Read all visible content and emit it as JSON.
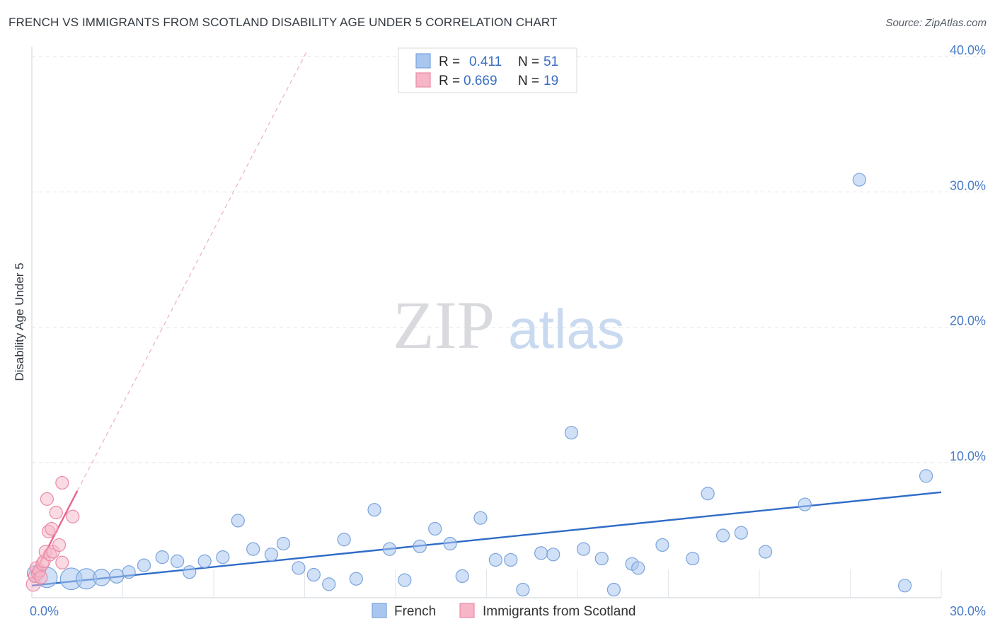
{
  "title": "FRENCH VS IMMIGRANTS FROM SCOTLAND DISABILITY AGE UNDER 5 CORRELATION CHART",
  "source": "Source: ZipAtlas.com",
  "watermark": {
    "zip": "ZIP",
    "atlas": "atlas"
  },
  "colors": {
    "french_fill": "#a9c6ef",
    "french_stroke": "#7aa3dc",
    "french_line": "#2f6cc7",
    "scot_fill": "#f6b6c8",
    "scot_stroke": "#ea8aa6",
    "scot_line": "#e8648e",
    "axis_text": "#4a7cc9",
    "grid": "#e3e6ea"
  },
  "legend": {
    "rows": [
      {
        "r_label": "R =",
        "r_value": "0.411",
        "n_label": "N =",
        "n_value": "51"
      },
      {
        "r_label": "R =",
        "r_value": "0.669",
        "n_label": "N =",
        "n_value": "19"
      }
    ]
  },
  "bottom_legend": [
    "French",
    "Immigrants from Scotland"
  ],
  "chart_data": {
    "type": "scatter",
    "title": "FRENCH VS IMMIGRANTS FROM SCOTLAND DISABILITY AGE UNDER 5 CORRELATION CHART",
    "xlabel": "",
    "ylabel": "Disability Age Under 5",
    "xlim": [
      0,
      30
    ],
    "ylim": [
      0,
      40
    ],
    "x_tick_labels": [
      "0.0%",
      "30.0%"
    ],
    "y_tick_labels": [
      "10.0%",
      "20.0%",
      "30.0%",
      "40.0%"
    ],
    "y_ticks": [
      10,
      20,
      30,
      40
    ],
    "grid": true,
    "legend_position": "top-center",
    "series": [
      {
        "name": "French",
        "R": 0.411,
        "N": 51,
        "trend": {
          "x": [
            0,
            30
          ],
          "y": [
            0.9,
            7.8
          ]
        },
        "points": [
          {
            "x": 0.1,
            "y": 1.8,
            "s": 1.2
          },
          {
            "x": 0.5,
            "y": 1.5,
            "s": 1.6
          },
          {
            "x": 1.3,
            "y": 1.4,
            "s": 1.7
          },
          {
            "x": 1.8,
            "y": 1.4,
            "s": 1.6
          },
          {
            "x": 2.3,
            "y": 1.5,
            "s": 1.3
          },
          {
            "x": 2.8,
            "y": 1.6,
            "s": 1.1
          },
          {
            "x": 3.2,
            "y": 1.9,
            "s": 1.0
          },
          {
            "x": 3.7,
            "y": 2.4,
            "s": 1.0
          },
          {
            "x": 4.3,
            "y": 3.0,
            "s": 1.0
          },
          {
            "x": 4.8,
            "y": 2.7,
            "s": 1.0
          },
          {
            "x": 5.2,
            "y": 1.9,
            "s": 1.0
          },
          {
            "x": 5.7,
            "y": 2.7,
            "s": 1.0
          },
          {
            "x": 6.3,
            "y": 3.0,
            "s": 1.0
          },
          {
            "x": 6.8,
            "y": 5.7,
            "s": 1.0
          },
          {
            "x": 7.3,
            "y": 3.6,
            "s": 1.0
          },
          {
            "x": 7.9,
            "y": 3.2,
            "s": 1.0
          },
          {
            "x": 8.3,
            "y": 4.0,
            "s": 1.0
          },
          {
            "x": 8.8,
            "y": 2.2,
            "s": 1.0
          },
          {
            "x": 9.3,
            "y": 1.7,
            "s": 1.0
          },
          {
            "x": 9.8,
            "y": 1.0,
            "s": 1.0
          },
          {
            "x": 10.3,
            "y": 4.3,
            "s": 1.0
          },
          {
            "x": 10.7,
            "y": 1.4,
            "s": 1.0
          },
          {
            "x": 11.3,
            "y": 6.5,
            "s": 1.0
          },
          {
            "x": 11.8,
            "y": 3.6,
            "s": 1.0
          },
          {
            "x": 12.3,
            "y": 1.3,
            "s": 1.0
          },
          {
            "x": 12.8,
            "y": 3.8,
            "s": 1.0
          },
          {
            "x": 13.3,
            "y": 5.1,
            "s": 1.0
          },
          {
            "x": 13.8,
            "y": 4.0,
            "s": 1.0
          },
          {
            "x": 14.2,
            "y": 1.6,
            "s": 1.0
          },
          {
            "x": 14.8,
            "y": 5.9,
            "s": 1.0
          },
          {
            "x": 15.3,
            "y": 2.8,
            "s": 1.0
          },
          {
            "x": 15.8,
            "y": 2.8,
            "s": 1.0
          },
          {
            "x": 16.2,
            "y": 0.6,
            "s": 1.0
          },
          {
            "x": 16.8,
            "y": 3.3,
            "s": 1.0
          },
          {
            "x": 17.2,
            "y": 3.2,
            "s": 1.0
          },
          {
            "x": 17.8,
            "y": 12.2,
            "s": 1.0
          },
          {
            "x": 18.2,
            "y": 3.6,
            "s": 1.0
          },
          {
            "x": 18.8,
            "y": 2.9,
            "s": 1.0
          },
          {
            "x": 19.2,
            "y": 0.6,
            "s": 1.0
          },
          {
            "x": 19.8,
            "y": 2.5,
            "s": 1.0
          },
          {
            "x": 20.0,
            "y": 2.2,
            "s": 1.0
          },
          {
            "x": 20.8,
            "y": 3.9,
            "s": 1.0
          },
          {
            "x": 21.8,
            "y": 2.9,
            "s": 1.0
          },
          {
            "x": 22.3,
            "y": 7.7,
            "s": 1.0
          },
          {
            "x": 22.8,
            "y": 4.6,
            "s": 1.0
          },
          {
            "x": 23.4,
            "y": 4.8,
            "s": 1.0
          },
          {
            "x": 24.2,
            "y": 3.4,
            "s": 1.0
          },
          {
            "x": 25.5,
            "y": 6.9,
            "s": 1.0
          },
          {
            "x": 27.3,
            "y": 30.9,
            "s": 1.0
          },
          {
            "x": 28.8,
            "y": 0.9,
            "s": 1.0
          },
          {
            "x": 29.5,
            "y": 9.0,
            "s": 1.0
          }
        ]
      },
      {
        "name": "Immigrants from Scotland",
        "R": 0.669,
        "N": 19,
        "trend": {
          "x": [
            0,
            1.5
          ],
          "y": [
            1.4,
            7.9
          ]
        },
        "trend_extended": {
          "x": [
            1.5,
            9.1
          ],
          "y": [
            7.9,
            40.5
          ]
        },
        "points": [
          {
            "x": 0.05,
            "y": 1.0,
            "s": 1.1
          },
          {
            "x": 0.1,
            "y": 1.6,
            "s": 1.0
          },
          {
            "x": 0.15,
            "y": 2.2,
            "s": 1.0
          },
          {
            "x": 0.2,
            "y": 1.8,
            "s": 1.0
          },
          {
            "x": 0.25,
            "y": 2.0,
            "s": 1.0
          },
          {
            "x": 0.3,
            "y": 1.5,
            "s": 1.0
          },
          {
            "x": 0.35,
            "y": 2.5,
            "s": 1.0
          },
          {
            "x": 0.4,
            "y": 2.7,
            "s": 1.0
          },
          {
            "x": 0.45,
            "y": 3.4,
            "s": 1.0
          },
          {
            "x": 0.5,
            "y": 7.3,
            "s": 1.0
          },
          {
            "x": 0.55,
            "y": 4.9,
            "s": 1.0
          },
          {
            "x": 0.6,
            "y": 3.2,
            "s": 1.0
          },
          {
            "x": 0.65,
            "y": 5.1,
            "s": 1.0
          },
          {
            "x": 0.7,
            "y": 3.4,
            "s": 1.0
          },
          {
            "x": 0.8,
            "y": 6.3,
            "s": 1.0
          },
          {
            "x": 0.9,
            "y": 3.9,
            "s": 1.0
          },
          {
            "x": 1.0,
            "y": 2.6,
            "s": 1.0
          },
          {
            "x": 1.0,
            "y": 8.5,
            "s": 1.0
          },
          {
            "x": 1.35,
            "y": 6.0,
            "s": 1.0
          }
        ]
      }
    ]
  }
}
